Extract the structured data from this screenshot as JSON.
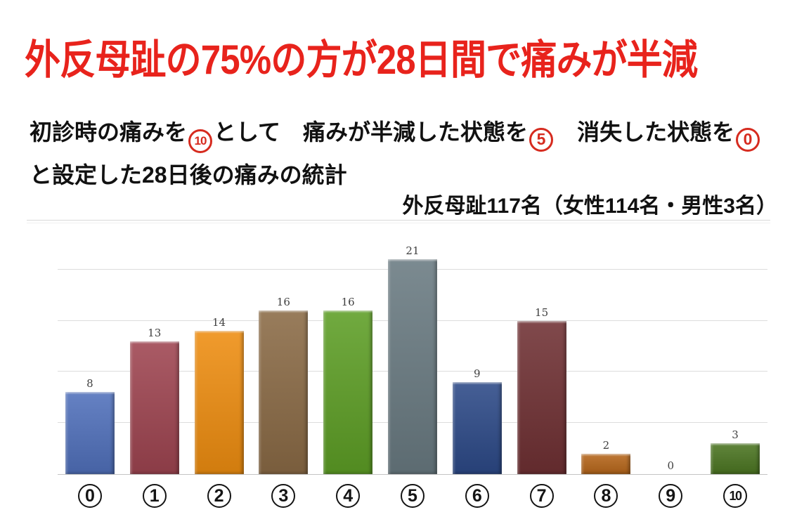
{
  "page": {
    "title": "外反母趾の75%の方が28日間で痛みが半減",
    "subtitle": {
      "p1": "初診時の痛みを",
      "c1": "10",
      "p2": "として　痛みが半減した状態を",
      "c2": "5",
      "p3": "　消失した状態を",
      "c3": "0",
      "line2": "と設定した28日後の痛みの統計"
    },
    "sample_note": "外反母趾117名（女性114名・男性3名）"
  },
  "colors": {
    "headline_red": "#e8231c",
    "circled_number_red": "#d62b1f",
    "body_text": "#111111",
    "grid": "#dcdcdc",
    "axis": "#c4c4c4",
    "data_label": "#3f3f3f"
  },
  "chart_data": {
    "type": "bar",
    "title": "",
    "xlabel": "",
    "ylabel": "",
    "categories": [
      "0",
      "1",
      "2",
      "3",
      "4",
      "5",
      "6",
      "7",
      "8",
      "9",
      "10"
    ],
    "values": [
      8,
      13,
      14,
      16,
      16,
      21,
      9,
      15,
      2,
      0,
      3
    ],
    "bar_colors": [
      "#5070bb",
      "#9e4450",
      "#ee8d10",
      "#8a6a45",
      "#5d9e25",
      "#697a81",
      "#2c4987",
      "#6f3033",
      "#b6661a",
      "#bfbfbf",
      "#4b7521"
    ],
    "ylim": [
      0,
      23
    ],
    "gridlines_at": [
      5,
      10,
      15,
      20
    ],
    "grid_on": true,
    "legend": "none",
    "x_label_style": "black-circled-numbers",
    "data_labels": "above-bars"
  }
}
